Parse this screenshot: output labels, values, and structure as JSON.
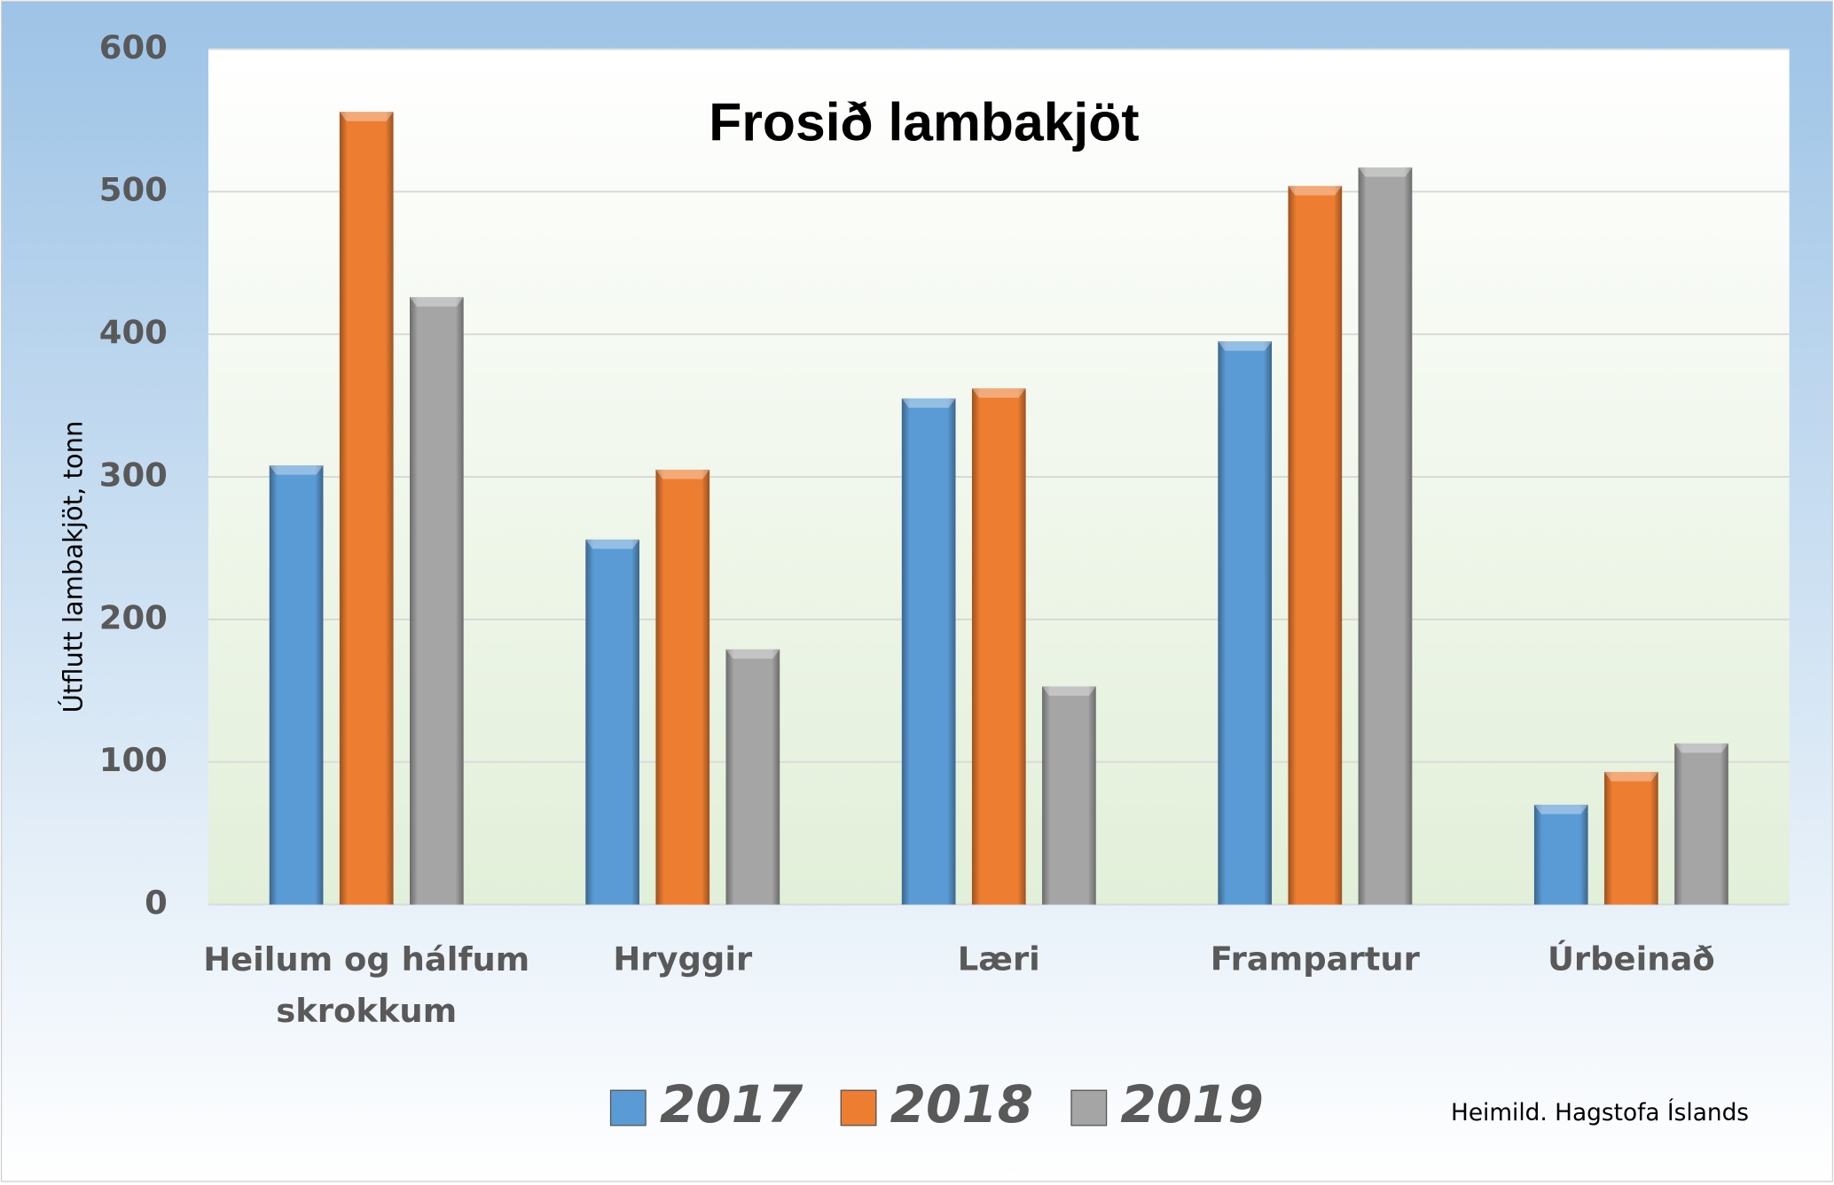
{
  "chart_data": {
    "type": "bar",
    "title": "Frosið lambakjöt",
    "y_label": "Útflutt lambakjöt, tonn",
    "source": "Heimild. Hagstofa Íslands",
    "categories": [
      "Heilum og hálfum skrokkum",
      "Hryggir",
      "Læri",
      "Frampartur",
      "Úrbeinað"
    ],
    "series": [
      {
        "name": "2017",
        "color": "#5b9bd5",
        "values": [
          308,
          256,
          355,
          395,
          70
        ]
      },
      {
        "name": "2018",
        "color": "#ed7d31",
        "values": [
          556,
          305,
          362,
          504,
          93
        ]
      },
      {
        "name": "2019",
        "color": "#a5a5a5",
        "values": [
          426,
          179,
          153,
          517,
          113
        ]
      }
    ],
    "ylim": [
      0,
      600
    ],
    "yticks": [
      0,
      100,
      200,
      300,
      400,
      500,
      600
    ],
    "grid": true,
    "legend": "bottom"
  }
}
